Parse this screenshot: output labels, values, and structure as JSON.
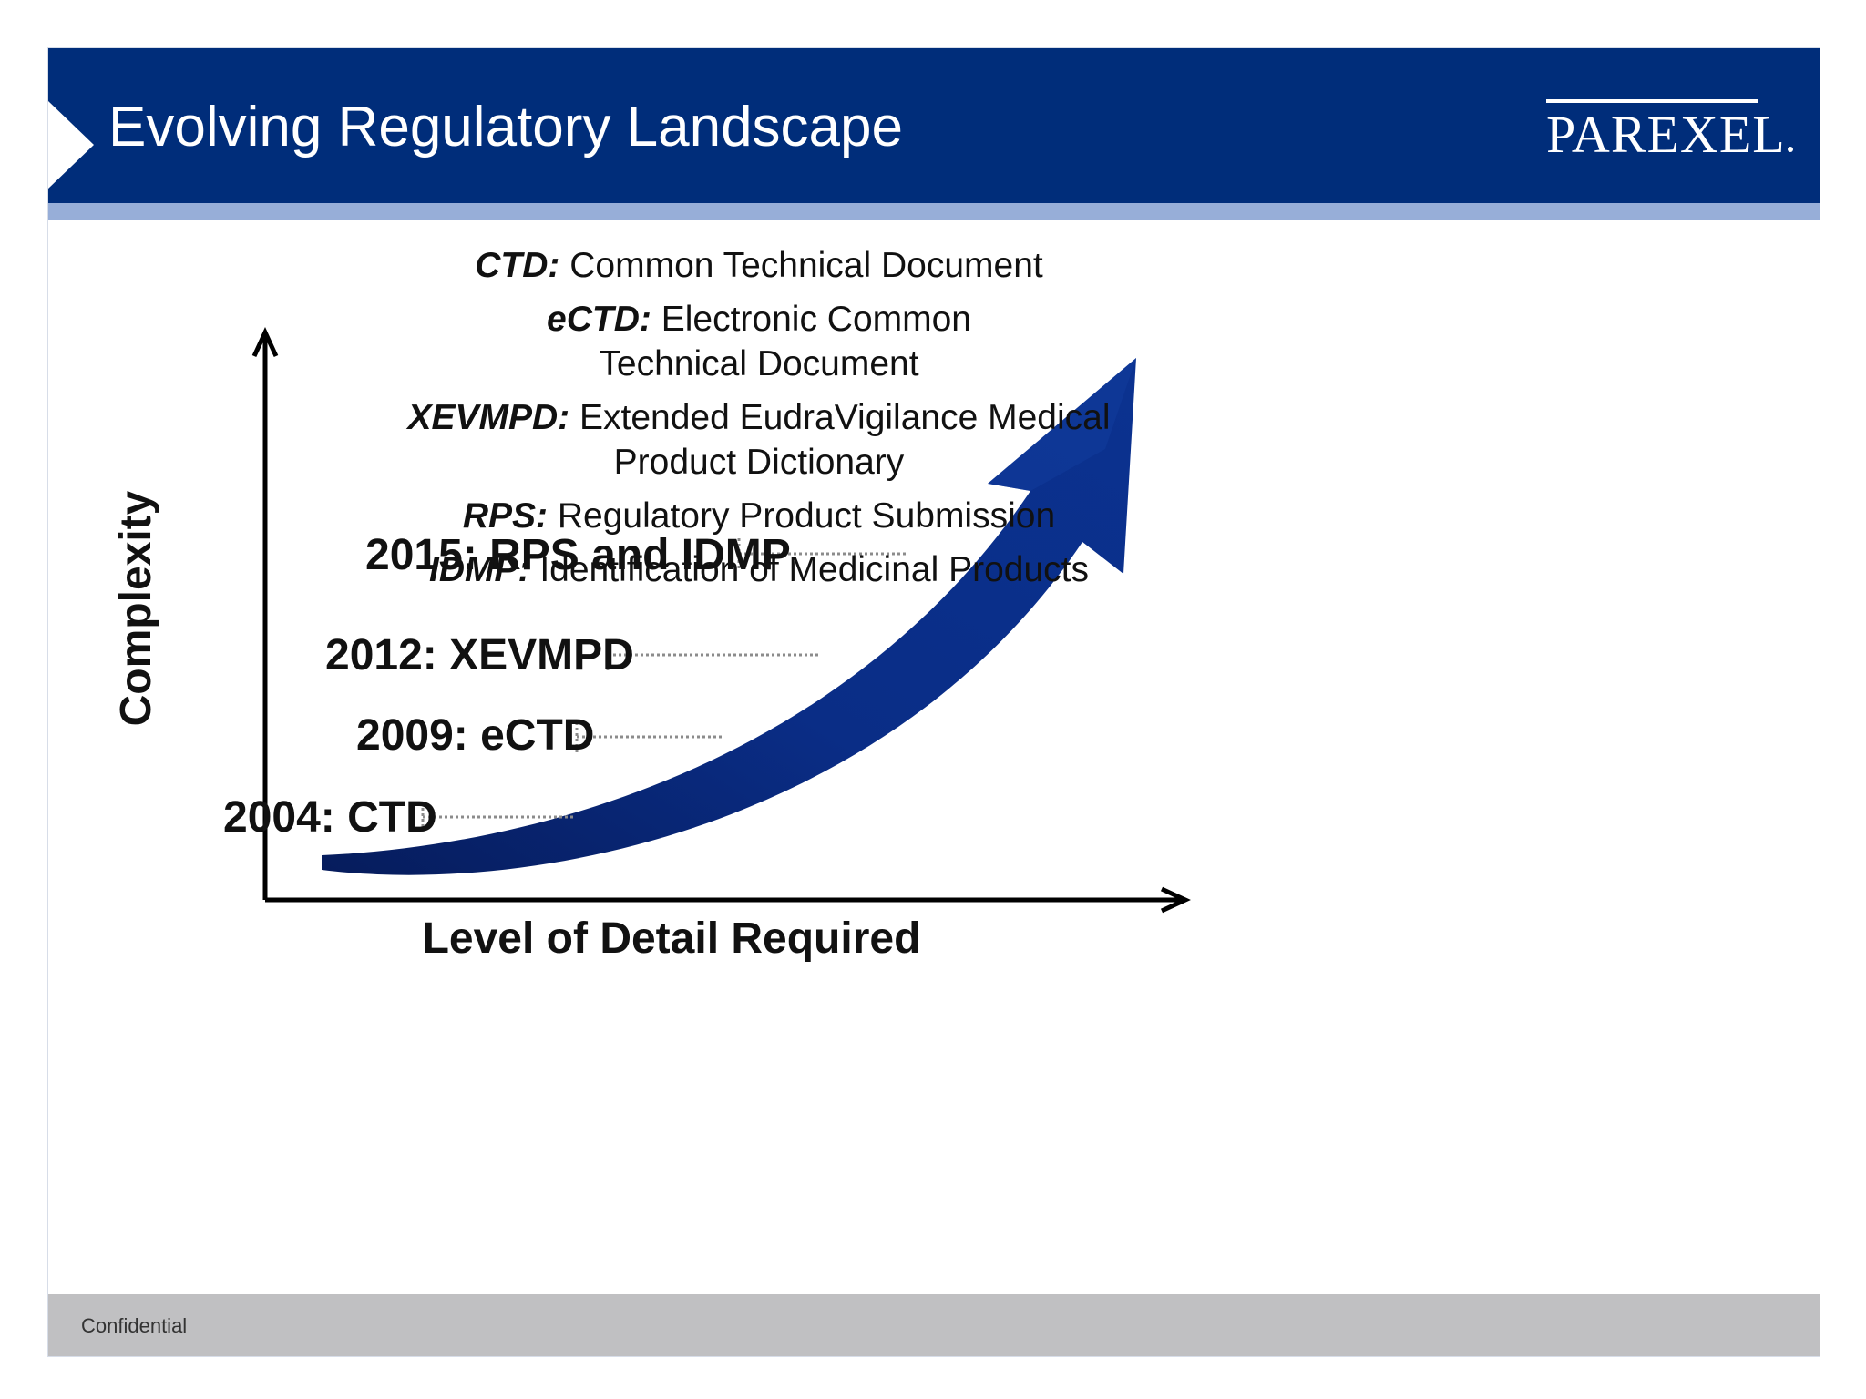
{
  "slide": {
    "title": "Evolving Regulatory Landscape",
    "logo_text": "PAREXEL",
    "footer": "Confidential"
  },
  "definitions": [
    {
      "term": "CTD:",
      "text": "Common Technical Document"
    },
    {
      "term": "eCTD:",
      "text": "Electronic Common Technical Document"
    },
    {
      "term": "XEVMPD:",
      "text": "Extended EudraVigilance Medical Product Dictionary"
    },
    {
      "term": "RPS:",
      "text": "Regulatory Product Submission"
    },
    {
      "term": "IDMP:",
      "text": "Identification of Medicinal Products"
    }
  ],
  "diagram": {
    "y_axis_label": "Complexity",
    "x_axis_label": "Level of Detail Required",
    "milestones": [
      {
        "label": "2004: CTD"
      },
      {
        "label": "2009: eCTD"
      },
      {
        "label": "2012: XEVMPD"
      },
      {
        "label": "2015: RPS and IDMP"
      }
    ]
  },
  "colors": {
    "header": "#002d7a",
    "header_stripe": "#97aed8",
    "arrow": "#0a2d86",
    "arrow_dark": "#061c5c",
    "footer": "#c0c0c2",
    "leader": "#8c8c8c"
  }
}
